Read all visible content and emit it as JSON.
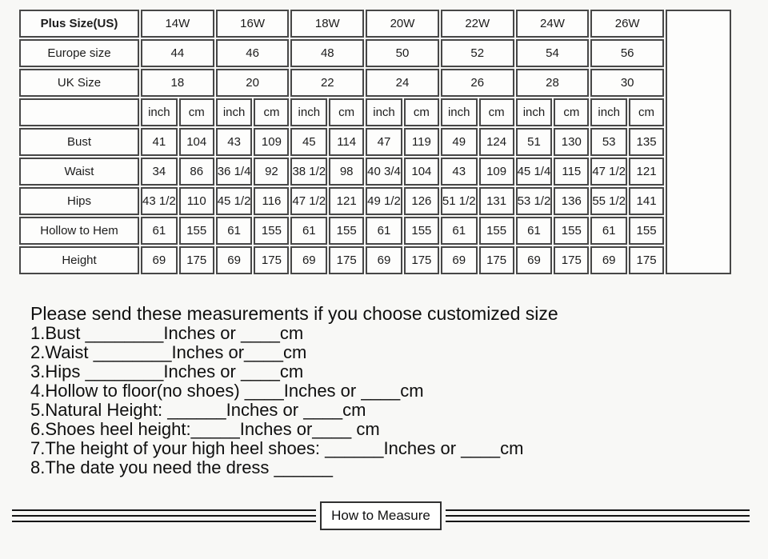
{
  "size_chart": {
    "size_system_label": "Plus Size(US)",
    "sizes": [
      "14W",
      "16W",
      "18W",
      "20W",
      "22W",
      "24W",
      "26W"
    ],
    "header_rows": [
      {
        "label": "Europe size",
        "values": [
          "44",
          "46",
          "48",
          "50",
          "52",
          "54",
          "56"
        ]
      },
      {
        "label": "UK Size",
        "values": [
          "18",
          "20",
          "22",
          "24",
          "26",
          "28",
          "30"
        ]
      }
    ],
    "unit_labels": [
      "inch",
      "cm"
    ],
    "measurement_rows": [
      {
        "label": "Bust",
        "values": [
          "41",
          "104",
          "43",
          "109",
          "45",
          "114",
          "47",
          "119",
          "49",
          "124",
          "51",
          "130",
          "53",
          "135"
        ]
      },
      {
        "label": "Waist",
        "values": [
          "34",
          "86",
          "36 1/4",
          "92",
          "38 1/2",
          "98",
          "40 3/4",
          "104",
          "43",
          "109",
          "45 1/4",
          "115",
          "47 1/2",
          "121"
        ]
      },
      {
        "label": "Hips",
        "values": [
          "43 1/2",
          "110",
          "45 1/2",
          "116",
          "47 1/2",
          "121",
          "49 1/2",
          "126",
          "51 1/2",
          "131",
          "53 1/2",
          "136",
          "55 1/2",
          "141"
        ]
      },
      {
        "label": "Hollow to Hem",
        "values": [
          "61",
          "155",
          "61",
          "155",
          "61",
          "155",
          "61",
          "155",
          "61",
          "155",
          "61",
          "155",
          "61",
          "155"
        ]
      },
      {
        "label": "Height",
        "values": [
          "69",
          "175",
          "69",
          "175",
          "69",
          "175",
          "69",
          "175",
          "69",
          "175",
          "69",
          "175",
          "69",
          "175"
        ]
      }
    ]
  },
  "custom_note": {
    "title": "Please send these measurements if you choose customized size",
    "lines": [
      "1.Bust ________Inches or ____cm",
      "2.Waist ________Inches or____cm",
      "3.Hips ________Inches or ____cm",
      "4.Hollow to floor(no shoes) ____Inches or ____cm",
      "5.Natural Height: ______Inches or ____cm",
      "6.Shoes heel height:_____Inches or____ cm",
      "7.The height of your high heel shoes: ______Inches or ____cm",
      "8.The date you need the dress  ______"
    ]
  },
  "footer": {
    "how_to_measure_label": "How to Measure"
  },
  "colors": {
    "table_border": "#474747",
    "cell_background": "#fdfdfc",
    "page_background": "#f8f8f6",
    "text": "#1c1c1c"
  }
}
